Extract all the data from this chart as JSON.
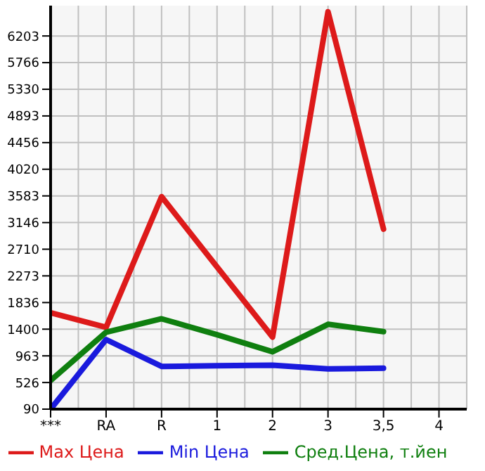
{
  "chart_data": {
    "type": "line",
    "categories": [
      "***",
      "RA",
      "R",
      "1",
      "2",
      "3",
      "3,5",
      "4"
    ],
    "series": [
      {
        "name": "Max Цена",
        "color": "#dd1a1a",
        "values": [
          1670,
          1430,
          3570,
          2420,
          1270,
          6600,
          3040,
          null
        ]
      },
      {
        "name": "Min Цена",
        "color": "#1a1add",
        "values": [
          90,
          1230,
          790,
          800,
          810,
          750,
          760,
          null
        ]
      },
      {
        "name": "Сред.Цена, т.йен",
        "color": "#0f7f0f",
        "values": [
          560,
          1350,
          1570,
          1310,
          1030,
          1480,
          1360,
          null
        ]
      }
    ],
    "ylim": [
      90,
      6700
    ],
    "yticks": [
      90,
      526,
      963,
      1400,
      1836,
      2273,
      2710,
      3146,
      3583,
      4020,
      4456,
      4893,
      5330,
      5766,
      6203
    ],
    "grid": true,
    "legend": "bottom",
    "marker": "none",
    "line_style": "solid"
  }
}
